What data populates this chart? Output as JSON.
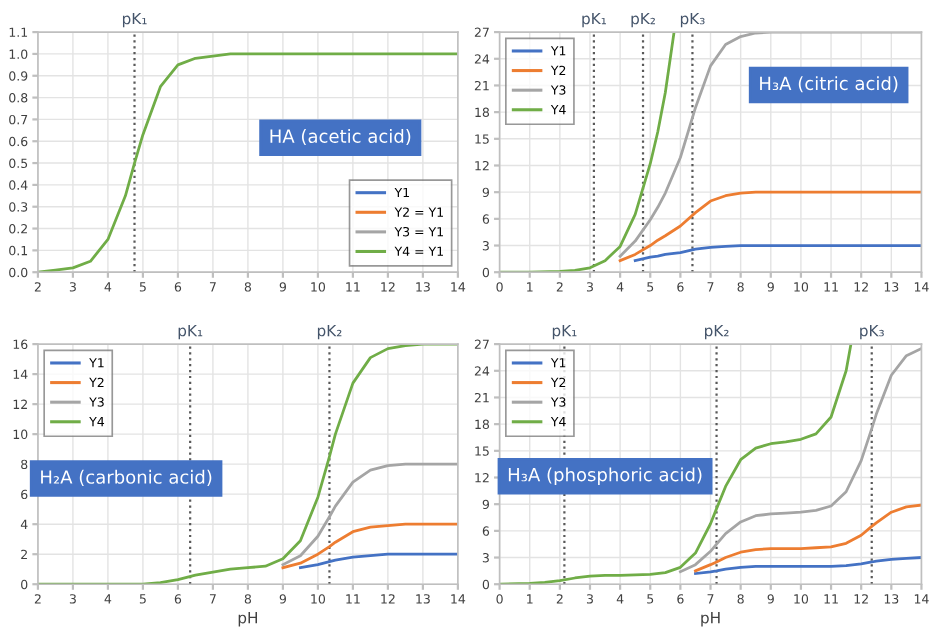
{
  "chart_data": [
    {
      "type": "line",
      "annotations": [
        "HA (acetic acid)"
      ],
      "xlim": [
        2,
        14
      ],
      "xticks": [
        2,
        3,
        4,
        5,
        6,
        7,
        8,
        9,
        10,
        11,
        12,
        13,
        14
      ],
      "ylim": [
        0,
        1.1
      ],
      "yticks": [
        {
          "value": 0,
          "label": "0.0"
        },
        {
          "value": 0.1,
          "label": "0.1"
        },
        {
          "value": 0.2,
          "label": "0.2"
        },
        {
          "value": 0.3,
          "label": "0.3"
        },
        {
          "value": 0.4,
          "label": "0.4"
        },
        {
          "value": 0.5,
          "label": "0.5"
        },
        {
          "value": 0.6,
          "label": "0.6"
        },
        {
          "value": 0.7,
          "label": "0.7"
        },
        {
          "value": 0.8,
          "label": "0.8"
        },
        {
          "value": 0.9,
          "label": "0.9"
        },
        {
          "value": 1.0,
          "label": "1.0"
        },
        {
          "value": 1.1,
          "label": "1.1"
        }
      ],
      "grid": true,
      "legend": "bottom right",
      "ref_lines": [
        {
          "axis": "x",
          "value": 4.76,
          "label": "pK₁",
          "color": "#595959",
          "line_style": "dotted"
        }
      ],
      "series": [
        {
          "name": "Y1",
          "color": "#4472c4"
        },
        {
          "name": "Y2 = Y1",
          "color": "#ed7d31"
        },
        {
          "name": "Y3 = Y1",
          "color": "#a5a5a5"
        },
        {
          "name": "Y4 = Y1",
          "color": "#70ad47",
          "x": [
            2,
            2.5,
            3,
            3.5,
            4,
            4.5,
            4.76,
            5,
            5.5,
            6,
            6.5,
            7,
            7.5,
            8,
            9,
            10,
            11,
            12,
            13,
            14
          ],
          "values": [
            0.0,
            0.01,
            0.02,
            0.05,
            0.15,
            0.35,
            0.5,
            0.63,
            0.85,
            0.95,
            0.98,
            0.99,
            1.0,
            1.0,
            1.0,
            1.0,
            1.0,
            1.0,
            1.0,
            1.0
          ]
        }
      ]
    },
    {
      "type": "line",
      "annotations": [
        "H₃A (citric acid)"
      ],
      "xlim": [
        0,
        14
      ],
      "xticks": [
        0,
        1,
        2,
        3,
        4,
        5,
        6,
        7,
        8,
        9,
        10,
        11,
        12,
        13,
        14
      ],
      "ylim": [
        0,
        27
      ],
      "yticks": [
        0,
        3,
        6,
        9,
        12,
        15,
        18,
        21,
        24,
        27
      ],
      "grid": true,
      "legend": "top left",
      "ref_lines": [
        {
          "axis": "x",
          "value": 3.13,
          "label": "pK₁",
          "color": "#595959",
          "line_style": "dotted"
        },
        {
          "axis": "x",
          "value": 4.76,
          "label": "pK₂",
          "color": "#595959",
          "line_style": "dotted"
        },
        {
          "axis": "x",
          "value": 6.4,
          "label": "pK₃",
          "color": "#595959",
          "line_style": "dotted"
        }
      ],
      "series": [
        {
          "name": "Y1",
          "color": "#4472c4",
          "x": [
            4.5,
            5,
            5.25,
            5.5,
            6,
            6.5,
            7,
            7.5,
            8,
            8.5,
            9,
            10,
            14
          ],
          "values": [
            1.3,
            1.7,
            1.8,
            2.0,
            2.2,
            2.6,
            2.8,
            2.9,
            3.0,
            3.0,
            3.0,
            3.0,
            3.0
          ]
        },
        {
          "name": "Y2",
          "color": "#ed7d31",
          "x": [
            4,
            4.5,
            5,
            5.25,
            5.5,
            6,
            6.5,
            7,
            7.5,
            8,
            8.5,
            9,
            10,
            14
          ],
          "values": [
            1.3,
            2.0,
            3.0,
            3.6,
            4.1,
            5.2,
            6.7,
            8.0,
            8.6,
            8.9,
            9.0,
            9.0,
            9.0,
            9.0
          ]
        },
        {
          "name": "Y3",
          "color": "#a5a5a5",
          "x": [
            4,
            4.5,
            5,
            5.25,
            5.5,
            6,
            6.5,
            7,
            7.5,
            8,
            8.5,
            9,
            10,
            14
          ],
          "values": [
            1.8,
            3.5,
            5.9,
            7.3,
            8.9,
            12.9,
            18.5,
            23.2,
            25.6,
            26.5,
            26.9,
            27.0,
            27.0,
            27.0
          ]
        },
        {
          "name": "Y4",
          "color": "#70ad47",
          "x": [
            0,
            1,
            2,
            2.5,
            3,
            3.5,
            4,
            4.5,
            5,
            5.25,
            5.5,
            5.79
          ],
          "values": [
            0.0,
            0.0,
            0.1,
            0.2,
            0.5,
            1.3,
            2.9,
            6.5,
            12.2,
            15.8,
            20.2,
            27.0
          ]
        }
      ]
    },
    {
      "type": "line",
      "annotations": [
        "H₂A (carbonic acid)"
      ],
      "xlabel": "pH",
      "xlim": [
        2,
        14
      ],
      "xticks": [
        2,
        3,
        4,
        5,
        6,
        7,
        8,
        9,
        10,
        11,
        12,
        13,
        14
      ],
      "ylim": [
        0,
        16
      ],
      "yticks": [
        0,
        2,
        4,
        6,
        8,
        10,
        12,
        14,
        16
      ],
      "grid": true,
      "legend": "top left",
      "ref_lines": [
        {
          "axis": "x",
          "value": 6.35,
          "label": "pK₁",
          "color": "#595959",
          "line_style": "dotted"
        },
        {
          "axis": "x",
          "value": 10.33,
          "label": "pK₂",
          "color": "#595959",
          "line_style": "dotted"
        }
      ],
      "series": [
        {
          "name": "Y1",
          "color": "#4472c4",
          "x": [
            9.5,
            10,
            10.33,
            10.5,
            11,
            11.5,
            12,
            12.5,
            13,
            14
          ],
          "values": [
            1.1,
            1.3,
            1.5,
            1.6,
            1.8,
            1.9,
            2.0,
            2.0,
            2.0,
            2.0
          ]
        },
        {
          "name": "Y2",
          "color": "#ed7d31",
          "x": [
            9,
            9.5,
            10,
            10.33,
            10.5,
            11,
            11.5,
            12,
            12.5,
            13,
            14
          ],
          "values": [
            1.1,
            1.4,
            2.0,
            2.5,
            2.8,
            3.5,
            3.8,
            3.9,
            4.0,
            4.0,
            4.0
          ]
        },
        {
          "name": "Y3",
          "color": "#a5a5a5",
          "x": [
            9,
            9.5,
            10,
            10.33,
            10.5,
            11,
            11.5,
            12,
            12.5,
            13,
            14
          ],
          "values": [
            1.3,
            1.9,
            3.2,
            4.5,
            5.2,
            6.8,
            7.6,
            7.9,
            8.0,
            8.0,
            8.0
          ]
        },
        {
          "name": "Y4",
          "color": "#70ad47",
          "x": [
            2,
            3,
            4,
            5,
            5.5,
            6,
            6.5,
            7,
            7.5,
            8,
            8.5,
            9,
            9.5,
            10,
            10.33,
            10.5,
            11,
            11.5,
            12,
            12.5,
            13,
            14
          ],
          "values": [
            0.0,
            0.0,
            0.0,
            0.0,
            0.1,
            0.3,
            0.6,
            0.8,
            1.0,
            1.1,
            1.2,
            1.7,
            2.9,
            5.8,
            8.5,
            10.0,
            13.4,
            15.1,
            15.7,
            15.9,
            16.0,
            16.0
          ]
        }
      ]
    },
    {
      "type": "line",
      "annotations": [
        "H₃A (phosphoric acid)"
      ],
      "xlabel": "pH",
      "xlim": [
        0,
        14
      ],
      "xticks": [
        0,
        1,
        2,
        3,
        4,
        5,
        6,
        7,
        8,
        9,
        10,
        11,
        12,
        13,
        14
      ],
      "ylim": [
        0,
        27
      ],
      "yticks": [
        0,
        3,
        6,
        9,
        12,
        15,
        18,
        21,
        24,
        27
      ],
      "grid": true,
      "legend": "top left",
      "ref_lines": [
        {
          "axis": "x",
          "value": 2.15,
          "label": "pK₁",
          "color": "#595959",
          "line_style": "dotted"
        },
        {
          "axis": "x",
          "value": 7.2,
          "label": "pK₂",
          "color": "#595959",
          "line_style": "dotted"
        },
        {
          "axis": "x",
          "value": 12.35,
          "label": "pK₃",
          "color": "#595959",
          "line_style": "dotted"
        }
      ],
      "series": [
        {
          "name": "Y1",
          "color": "#4472c4",
          "x": [
            6.5,
            7,
            7.2,
            7.5,
            8,
            8.5,
            9,
            9.5,
            10,
            10.5,
            11,
            11.5,
            12,
            12.35,
            12.5,
            13,
            13.5,
            14
          ],
          "values": [
            1.2,
            1.4,
            1.5,
            1.7,
            1.9,
            2.0,
            2.0,
            2.0,
            2.0,
            2.0,
            2.0,
            2.1,
            2.3,
            2.5,
            2.6,
            2.8,
            2.9,
            3.0
          ]
        },
        {
          "name": "Y2",
          "color": "#ed7d31",
          "x": [
            6.5,
            7,
            7.2,
            7.5,
            8,
            8.5,
            9,
            9.5,
            10,
            10.5,
            11,
            11.5,
            12,
            12.35,
            12.5,
            13,
            13.5,
            14
          ],
          "values": [
            1.5,
            2.2,
            2.5,
            3.0,
            3.6,
            3.9,
            4.0,
            4.0,
            4.0,
            4.1,
            4.2,
            4.6,
            5.5,
            6.5,
            6.9,
            8.1,
            8.7,
            8.9
          ]
        },
        {
          "name": "Y3",
          "color": "#a5a5a5",
          "x": [
            6,
            6.5,
            7,
            7.2,
            7.5,
            8,
            8.5,
            9,
            9.5,
            10,
            10.5,
            11,
            11.5,
            12,
            12.35,
            12.5,
            13,
            13.5,
            14
          ],
          "values": [
            1.4,
            2.2,
            3.7,
            4.5,
            5.7,
            7.0,
            7.7,
            7.9,
            8.0,
            8.1,
            8.3,
            8.8,
            10.4,
            13.9,
            17.5,
            19.1,
            23.5,
            25.7,
            26.5
          ]
        },
        {
          "name": "Y4",
          "color": "#70ad47",
          "x": [
            0,
            1,
            1.5,
            2,
            2.5,
            3,
            3.5,
            4,
            5,
            5.5,
            6,
            6.5,
            7,
            7.2,
            7.5,
            8,
            8.5,
            9,
            9.5,
            10,
            10.5,
            11,
            11.5,
            11.66
          ],
          "values": [
            0.0,
            0.1,
            0.2,
            0.4,
            0.7,
            0.9,
            1.0,
            1.0,
            1.1,
            1.3,
            1.9,
            3.5,
            6.8,
            8.5,
            11.0,
            14.0,
            15.3,
            15.8,
            16.0,
            16.3,
            16.9,
            18.8,
            24.0,
            27.0
          ]
        }
      ]
    }
  ]
}
